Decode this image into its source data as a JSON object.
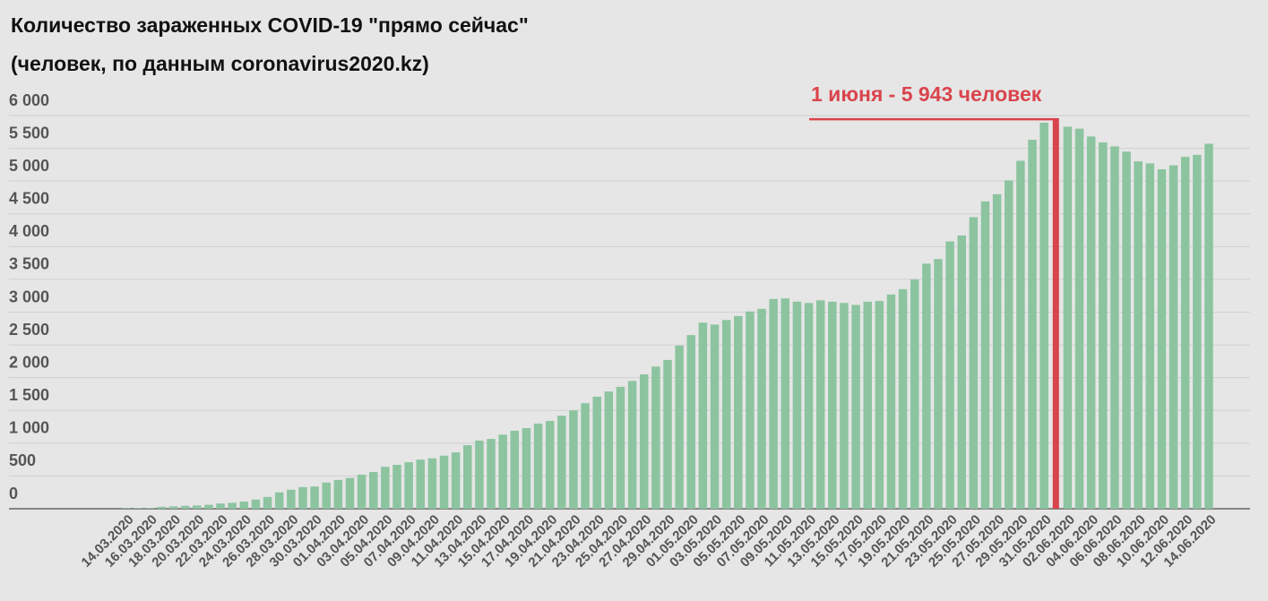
{
  "chart_data": {
    "type": "bar",
    "title": "Количество зараженных COVID-19 \"прямо сейчас\"",
    "subtitle": "(человек, по данным coronavirus2020.kz)",
    "annotation": "1 июня - 5 943 человек",
    "color": "#8cc4a0",
    "highlight_color": "#d9444c",
    "highlight_index": 79,
    "grid": true,
    "ylim": [
      0,
      6000
    ],
    "yticks": [
      0,
      500,
      {
        "value": 1000,
        "label": "1 000"
      },
      {
        "value": 1500,
        "label": "1 500"
      },
      {
        "value": 2000,
        "label": "2 000"
      },
      {
        "value": 2500,
        "label": "2 500"
      },
      {
        "value": 3000,
        "label": "3 000"
      },
      {
        "value": 3500,
        "label": "3 500"
      },
      {
        "value": 4000,
        "label": "4 000"
      },
      {
        "value": 4500,
        "label": "4 500"
      },
      {
        "value": 5000,
        "label": "5 000"
      },
      {
        "value": 5500,
        "label": "5 500"
      },
      {
        "value": 6000,
        "label": "6 000"
      }
    ],
    "categories": [
      "14.03.2020",
      null,
      "16.03.2020",
      null,
      "18.03.2020",
      null,
      "20.03.2020",
      null,
      "22.03.2020",
      null,
      "24.03.2020",
      null,
      "26.03.2020",
      null,
      "28.03.2020",
      null,
      "30.03.2020",
      null,
      "01.04.2020",
      null,
      "03.04.2020",
      null,
      "05.04.2020",
      null,
      "07.04.2020",
      null,
      "09.04.2020",
      null,
      "11.04.2020",
      null,
      "13.04.2020",
      null,
      "15.04.2020",
      null,
      "17.04.2020",
      null,
      "19.04.2020",
      null,
      "21.04.2020",
      null,
      "23.04.2020",
      null,
      "25.04.2020",
      null,
      "27.04.2020",
      null,
      "29.04.2020",
      null,
      "01.05.2020",
      null,
      "03.05.2020",
      null,
      "05.05.2020",
      null,
      "07.05.2020",
      null,
      "09.05.2020",
      null,
      "11.05.2020",
      null,
      "13.05.2020",
      null,
      "15.05.2020",
      null,
      "17.05.2020",
      null,
      "19.05.2020",
      null,
      "21.05.2020",
      null,
      "23.05.2020",
      null,
      "25.05.2020",
      null,
      "27.05.2020",
      null,
      "29.05.2020",
      null,
      "31.05.2020",
      null,
      "02.06.2020",
      null,
      "04.06.2020",
      null,
      "06.06.2020",
      null,
      "08.06.2020",
      null,
      "10.06.2020",
      null,
      "12.06.2020",
      null,
      "14.06.2020"
    ],
    "values": [
      6,
      9,
      10,
      30,
      36,
      44,
      50,
      60,
      80,
      90,
      110,
      140,
      180,
      250,
      290,
      330,
      340,
      400,
      440,
      470,
      520,
      560,
      640,
      670,
      710,
      750,
      770,
      810,
      860,
      970,
      1040,
      1065,
      1130,
      1190,
      1230,
      1300,
      1340,
      1420,
      1500,
      1610,
      1710,
      1790,
      1860,
      1950,
      2050,
      2170,
      2270,
      2490,
      2650,
      2840,
      2810,
      2880,
      2940,
      3010,
      3050,
      3200,
      3210,
      3160,
      3140,
      3180,
      3160,
      3140,
      3110,
      3160,
      3170,
      3270,
      3350,
      3500,
      3740,
      3810,
      4080,
      4170,
      4450,
      4690,
      4800,
      5010,
      5310,
      5630,
      5890,
      5943,
      5830,
      5800,
      5680,
      5590,
      5530,
      5450,
      5300,
      5270,
      5180,
      5240,
      5370,
      5400,
      5570
    ]
  }
}
